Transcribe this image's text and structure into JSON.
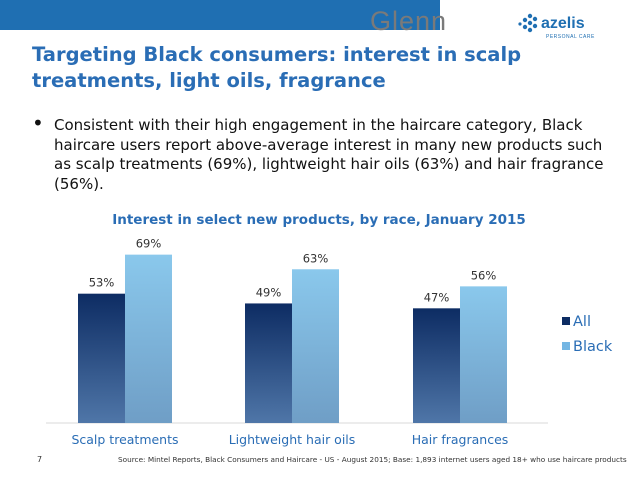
{
  "header": {
    "brand_glenn": "Glenn",
    "brand_azelis": "azelis",
    "brand_azelis_sub": "PERSONAL CARE"
  },
  "slide": {
    "title": "Targeting Black consumers: interest in scalp treatments, light oils, fragrance",
    "bullet": "Consistent with their high engagement in the haircare category, Black haircare users report above-average interest in many new products such as scalp treatments (69%), lightweight hair oils (63%) and hair fragrance (56%).",
    "page_number": "7",
    "source": "Source: Mintel Reports, Black Consumers and Haircare - US - August 2015; Base: 1,893 internet users aged 18+ who use haircare products"
  },
  "colors": {
    "title": "#2a6db5",
    "topbar": "#1f6fb2",
    "all_top": "#0d2c63",
    "all_bottom": "#4f76a8",
    "black_top": "#8ac8ec",
    "black_bottom": "#6f9ec6"
  },
  "chart_data": {
    "type": "bar",
    "title": "Interest in select new products, by race, January 2015",
    "categories": [
      "Scalp treatments",
      "Lightweight hair oils",
      "Hair fragrances"
    ],
    "series": [
      {
        "name": "All",
        "values": [
          53,
          49,
          47
        ],
        "labels": [
          "53%",
          "49%",
          "47%"
        ]
      },
      {
        "name": "Black",
        "values": [
          69,
          63,
          56
        ],
        "labels": [
          "69%",
          "63%",
          "56%"
        ]
      }
    ],
    "ylim": [
      0,
      100
    ],
    "grid": false,
    "legend": "right"
  }
}
